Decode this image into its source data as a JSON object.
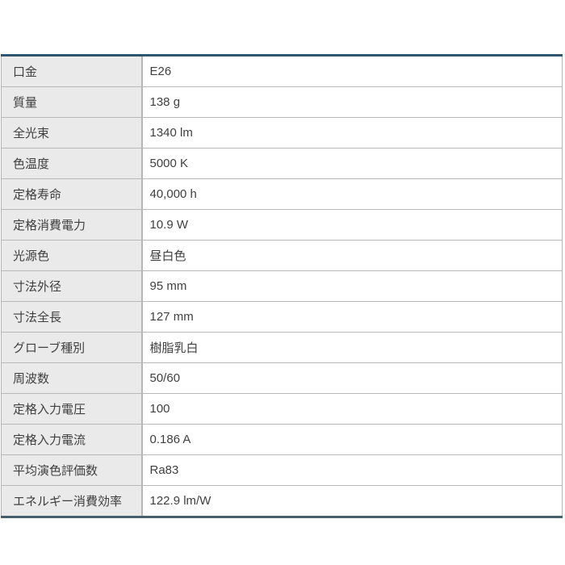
{
  "page": {
    "background_color": "#ffffff"
  },
  "colors": {
    "table_top_border": "#30556f",
    "table_bottom_border": "#46606b",
    "grid_line": "#b9b9b9",
    "outer_side_border": "#b5b5b5",
    "label_cell_bg": "#eaeaea",
    "value_cell_bg": "#ffffff",
    "text": "#404040"
  },
  "spec_table": {
    "rows": [
      {
        "label": "口金",
        "value": "E26"
      },
      {
        "label": "質量",
        "value": "138 g"
      },
      {
        "label": "全光束",
        "value": "1340 lm"
      },
      {
        "label": "色温度",
        "value": "5000 K"
      },
      {
        "label": "定格寿命",
        "value": "40,000 h"
      },
      {
        "label": "定格消費電力",
        "value": "10.9 W"
      },
      {
        "label": "光源色",
        "value": "昼白色"
      },
      {
        "label": "寸法外径",
        "value": "95 mm"
      },
      {
        "label": "寸法全長",
        "value": "127 mm"
      },
      {
        "label": "グローブ種別",
        "value": "樹脂乳白"
      },
      {
        "label": "周波数",
        "value": "50/60"
      },
      {
        "label": "定格入力電圧",
        "value": "100"
      },
      {
        "label": "定格入力電流",
        "value": "0.186 A"
      },
      {
        "label": "平均演色評価数",
        "value": "Ra83"
      },
      {
        "label": "エネルギー消費効率",
        "value": "122.9 lm/W"
      }
    ]
  }
}
